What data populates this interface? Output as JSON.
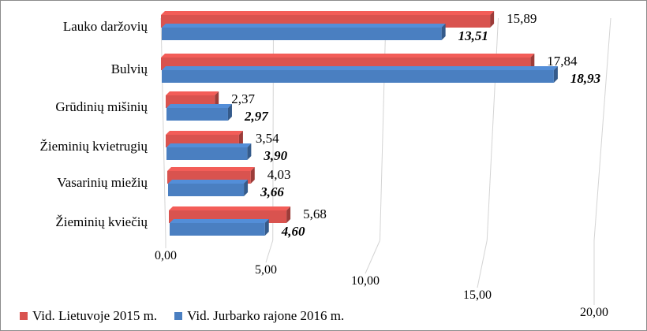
{
  "chart_data": {
    "type": "bar",
    "orientation": "horizontal",
    "style": "3d-clustered",
    "categories": [
      "Lauko daržovių",
      "Bulvių",
      "Grūdinių mišinių",
      "Žieminių kvietrugių",
      "Vasarinių miežių",
      "Žieminių kviečių"
    ],
    "series": [
      {
        "name": "Vid. Lietuvoje 2015 m.",
        "color": "#d9534f",
        "values": [
          15.89,
          17.84,
          2.37,
          3.54,
          4.03,
          5.68
        ],
        "labels": [
          "15,89",
          "17,84",
          "2,37",
          "3,54",
          "4,03",
          "5,68"
        ],
        "label_style": "normal"
      },
      {
        "name": "Vid. Jurbarko rajone 2016 m.",
        "color": "#4a7fc1",
        "values": [
          13.51,
          18.93,
          2.97,
          3.9,
          3.66,
          4.6
        ],
        "labels": [
          "13,51",
          "18,93",
          "2,97",
          "3,90",
          "3,66",
          "4,60"
        ],
        "label_style": "bold-italic"
      }
    ],
    "x_ticks": [
      "0,00",
      "5,00",
      "10,00",
      "15,00",
      "20,00"
    ],
    "x_tick_values": [
      0,
      5,
      10,
      15,
      20
    ],
    "xlim": [
      0,
      20
    ],
    "title": "",
    "xlabel": "",
    "ylabel": "",
    "grid": true,
    "legend_position": "bottom-left"
  }
}
